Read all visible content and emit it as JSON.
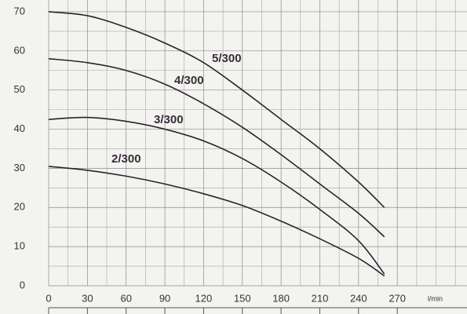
{
  "chart_data": {
    "type": "line",
    "x_label": "l/min",
    "x": [
      0,
      30,
      60,
      90,
      120,
      150,
      180,
      210,
      240,
      260
    ],
    "series": [
      {
        "name": "5/300",
        "color": "#2b2230",
        "values": [
          70,
          69,
          66,
          62,
          57,
          50,
          42.5,
          35,
          26.5,
          20
        ]
      },
      {
        "name": "4/300",
        "color": "#2b2230",
        "values": [
          58,
          57,
          55,
          51.5,
          46.5,
          40.5,
          33.5,
          26,
          18.5,
          12.5
        ]
      },
      {
        "name": "3/300",
        "color": "#2b2230",
        "values": [
          42.5,
          43,
          42,
          40,
          37,
          32.5,
          26.5,
          19.5,
          11.5,
          3
        ]
      },
      {
        "name": "2/300",
        "color": "#2b2230",
        "values": [
          30.5,
          29.5,
          28,
          26,
          23.5,
          20.5,
          16.5,
          12,
          7,
          2.5
        ]
      }
    ],
    "xlim": [
      0,
      324
    ],
    "ylim": [
      0,
      73
    ],
    "xticks": [
      0,
      30,
      60,
      90,
      120,
      150,
      180,
      210,
      240,
      270
    ],
    "yticks": [
      0,
      10,
      20,
      30,
      40,
      50,
      60,
      70
    ],
    "xminorticks": [
      15,
      45,
      75,
      105,
      135,
      165,
      195,
      225,
      255,
      285,
      300,
      315
    ],
    "yminorticks": [
      5,
      15,
      25,
      35,
      45,
      55,
      65
    ],
    "grid": true
  }
}
